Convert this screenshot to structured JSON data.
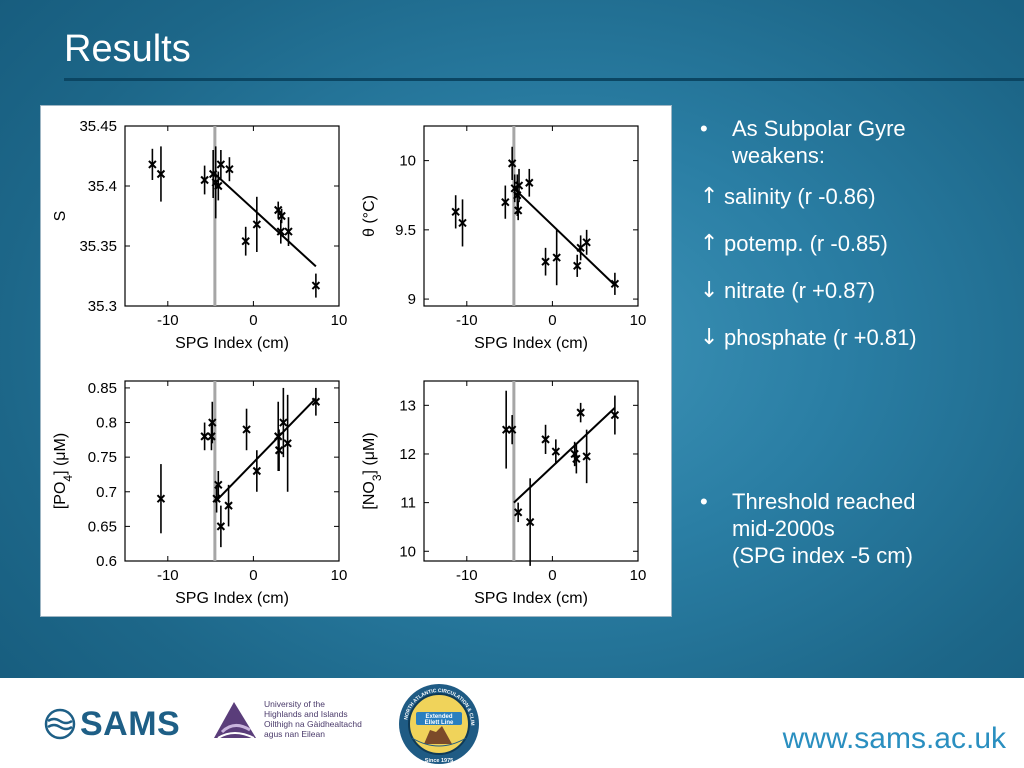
{
  "slide": {
    "title": "Results",
    "bullets": [
      {
        "text": "As Subpolar Gyre weakens:"
      },
      {
        "text": "Threshold reached mid-2000s (SPG index -5 cm)"
      }
    ],
    "bullet_lines_1": [
      "As Subpolar Gyre",
      "weakens:"
    ],
    "bullet_lines_2": [
      "Threshold reached",
      "mid-2000s",
      "(SPG index -5 cm)"
    ],
    "bullet_symbol": "•",
    "correlations": [
      {
        "arrow": "↑",
        "text": "salinity (r -0.86)"
      },
      {
        "arrow": "↑",
        "text": "potemp. (r -0.85)"
      },
      {
        "arrow": "↓",
        "text": "nitrate (r +0.87)"
      },
      {
        "arrow": "↓",
        "text": "phosphate (r +0.81)"
      }
    ]
  },
  "footer": {
    "sams_logo": "SAMS",
    "uhi_logo_lines": [
      "University of the",
      "Highlands and Islands",
      "Oilthigh na Gàidhealtachd",
      "agus nan Eilean"
    ],
    "eel_badge_lines": [
      "Extended",
      "Ellett Line",
      "Since 1975"
    ],
    "eel_ring_text": "NORTH ATLANTIC CIRCULATION & CLIMATE",
    "url": "www.sams.ac.uk"
  },
  "colors": {
    "accent_url": "#2a8fc0",
    "title_rule": "#0b4663",
    "threshold_line": "#a6a6a6"
  },
  "chart_data": [
    {
      "type": "scatter",
      "xlabel": "SPG Index (cm)",
      "ylabel": "S",
      "xlim": [
        -15,
        10
      ],
      "ylim": [
        35.3,
        35.45
      ],
      "xticks": [
        -10,
        0,
        10
      ],
      "xtick_labels": [
        "-10",
        "0",
        "10"
      ],
      "yticks": [
        35.3,
        35.35,
        35.4,
        35.45
      ],
      "ytick_labels": [
        "35.3",
        "35.35",
        "35.4",
        "35.45"
      ],
      "threshold_x": -4.5,
      "points": [
        {
          "x": -11.8,
          "y": 35.418,
          "err": 0.013
        },
        {
          "x": -10.8,
          "y": 35.41,
          "err": 0.023
        },
        {
          "x": -5.7,
          "y": 35.405,
          "err": 0.012
        },
        {
          "x": -4.7,
          "y": 35.41,
          "err": 0.02
        },
        {
          "x": -4.4,
          "y": 35.403,
          "err": 0.03
        },
        {
          "x": -4.1,
          "y": 35.4,
          "err": 0.012
        },
        {
          "x": -3.8,
          "y": 35.418,
          "err": 0.012
        },
        {
          "x": -2.8,
          "y": 35.414,
          "err": 0.01
        },
        {
          "x": -0.9,
          "y": 35.354,
          "err": 0.012
        },
        {
          "x": 0.4,
          "y": 35.368,
          "err": 0.023
        },
        {
          "x": 2.9,
          "y": 35.38,
          "err": 0.007
        },
        {
          "x": 3.3,
          "y": 35.375,
          "err": 0.006
        },
        {
          "x": 3.2,
          "y": 35.362,
          "err": 0.01
        },
        {
          "x": 4.1,
          "y": 35.362,
          "err": 0.012
        },
        {
          "x": 7.3,
          "y": 35.317,
          "err": 0.01
        }
      ],
      "fit": [
        [
          -4.5,
          35.41
        ],
        [
          7.3,
          35.333
        ]
      ]
    },
    {
      "type": "scatter",
      "xlabel": "SPG Index (cm)",
      "ylabel": "θ (°C)",
      "xlim": [
        -15,
        10
      ],
      "ylim": [
        8.95,
        10.25
      ],
      "xticks": [
        -10,
        0,
        10
      ],
      "xtick_labels": [
        "-10",
        "0",
        "10"
      ],
      "yticks": [
        9,
        9.5,
        10
      ],
      "ytick_labels": [
        "9",
        "9.5",
        "10"
      ],
      "threshold_x": -4.5,
      "points": [
        {
          "x": -11.3,
          "y": 9.63,
          "err": 0.12
        },
        {
          "x": -10.5,
          "y": 9.55,
          "err": 0.17
        },
        {
          "x": -5.5,
          "y": 9.7,
          "err": 0.12
        },
        {
          "x": -4.7,
          "y": 9.98,
          "err": 0.12
        },
        {
          "x": -4.4,
          "y": 9.8,
          "err": 0.1
        },
        {
          "x": -4.1,
          "y": 9.75,
          "err": 0.15
        },
        {
          "x": -3.9,
          "y": 9.82,
          "err": 0.12
        },
        {
          "x": -4.0,
          "y": 9.64,
          "err": 0.07
        },
        {
          "x": -2.7,
          "y": 9.84,
          "err": 0.1
        },
        {
          "x": -0.8,
          "y": 9.27,
          "err": 0.1
        },
        {
          "x": 0.5,
          "y": 9.3,
          "err": 0.2
        },
        {
          "x": 2.9,
          "y": 9.24,
          "err": 0.08
        },
        {
          "x": 3.3,
          "y": 9.37,
          "err": 0.09
        },
        {
          "x": 4.0,
          "y": 9.41,
          "err": 0.09
        },
        {
          "x": 7.3,
          "y": 9.11,
          "err": 0.08
        }
      ],
      "fit": [
        [
          -4.5,
          9.8
        ],
        [
          7.3,
          9.1
        ]
      ]
    },
    {
      "type": "scatter",
      "xlabel": "SPG Index (cm)",
      "ylabel": "[PO4] (μM)",
      "xlim": [
        -15,
        10
      ],
      "ylim": [
        0.6,
        0.86
      ],
      "xticks": [
        -10,
        0,
        10
      ],
      "xtick_labels": [
        "-10",
        "0",
        "10"
      ],
      "yticks": [
        0.6,
        0.65,
        0.7,
        0.75,
        0.8,
        0.85
      ],
      "ytick_labels": [
        "0.6",
        "0.65",
        "0.7",
        "0.75",
        "0.8",
        "0.85"
      ],
      "threshold_x": -4.5,
      "points": [
        {
          "x": -10.8,
          "y": 0.69,
          "err": 0.05
        },
        {
          "x": -5.7,
          "y": 0.78,
          "err": 0.02
        },
        {
          "x": -4.8,
          "y": 0.8,
          "err": 0.03
        },
        {
          "x": -4.9,
          "y": 0.78,
          "err": 0.02
        },
        {
          "x": -4.1,
          "y": 0.71,
          "err": 0.02
        },
        {
          "x": -4.3,
          "y": 0.69,
          "err": 0.02
        },
        {
          "x": -3.8,
          "y": 0.65,
          "err": 0.03
        },
        {
          "x": -2.9,
          "y": 0.68,
          "err": 0.03
        },
        {
          "x": -0.8,
          "y": 0.79,
          "err": 0.03
        },
        {
          "x": 0.4,
          "y": 0.73,
          "err": 0.03
        },
        {
          "x": 2.9,
          "y": 0.78,
          "err": 0.05
        },
        {
          "x": 3.0,
          "y": 0.76,
          "err": 0.03
        },
        {
          "x": 3.5,
          "y": 0.8,
          "err": 0.05
        },
        {
          "x": 4.0,
          "y": 0.77,
          "err": 0.07
        },
        {
          "x": 7.3,
          "y": 0.83,
          "err": 0.02
        }
      ],
      "fit": [
        [
          -4.5,
          0.685
        ],
        [
          7.3,
          0.835
        ]
      ]
    },
    {
      "type": "scatter",
      "xlabel": "SPG Index (cm)",
      "ylabel": "[NO3] (μM)",
      "xlim": [
        -15,
        10
      ],
      "ylim": [
        9.8,
        13.5
      ],
      "xticks": [
        -10,
        0,
        10
      ],
      "xtick_labels": [
        "-10",
        "0",
        "10"
      ],
      "yticks": [
        10,
        11,
        12,
        13
      ],
      "ytick_labels": [
        "10",
        "11",
        "12",
        "13"
      ],
      "threshold_x": -4.5,
      "points": [
        {
          "x": -5.4,
          "y": 12.5,
          "err": 0.8
        },
        {
          "x": -4.7,
          "y": 12.5,
          "err": 0.3
        },
        {
          "x": -4.0,
          "y": 10.8,
          "err": 0.2
        },
        {
          "x": -2.6,
          "y": 10.6,
          "err": 0.9
        },
        {
          "x": -0.8,
          "y": 12.3,
          "err": 0.3
        },
        {
          "x": 0.4,
          "y": 12.05,
          "err": 0.25
        },
        {
          "x": 2.6,
          "y": 12.0,
          "err": 0.25
        },
        {
          "x": 2.8,
          "y": 11.9,
          "err": 0.3
        },
        {
          "x": 3.3,
          "y": 12.85,
          "err": 0.2
        },
        {
          "x": 4.0,
          "y": 11.95,
          "err": 0.55
        },
        {
          "x": 7.3,
          "y": 12.8,
          "err": 0.4
        }
      ],
      "fit": [
        [
          -4.5,
          11.0
        ],
        [
          7.3,
          12.95
        ]
      ]
    }
  ]
}
